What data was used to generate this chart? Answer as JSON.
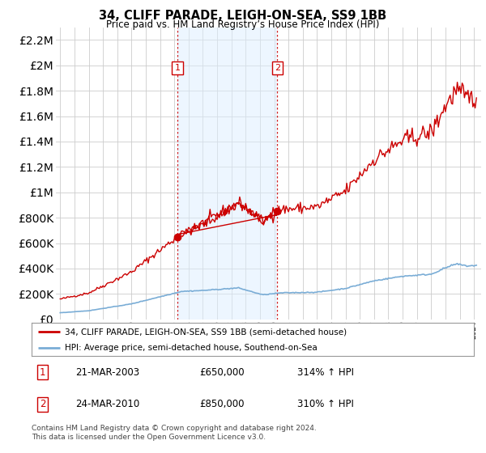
{
  "title": "34, CLIFF PARADE, LEIGH-ON-SEA, SS9 1BB",
  "subtitle": "Price paid vs. HM Land Registry’s House Price Index (HPI)",
  "legend_label1": "34, CLIFF PARADE, LEIGH-ON-SEA, SS9 1BB (semi-detached house)",
  "legend_label2": "HPI: Average price, semi-detached house, Southend-on-Sea",
  "transaction1_date": "21-MAR-2003",
  "transaction1_price": "£650,000",
  "transaction1_hpi": "314% ↑ HPI",
  "transaction2_date": "24-MAR-2010",
  "transaction2_price": "£850,000",
  "transaction2_hpi": "310% ↑ HPI",
  "footer": "Contains HM Land Registry data © Crown copyright and database right 2024.\nThis data is licensed under the Open Government Licence v3.0.",
  "ylim": [
    0,
    2300000
  ],
  "xlim_left": 1994.7,
  "xlim_right": 2024.5,
  "hpi_color": "#7aadd6",
  "price_color": "#cc0000",
  "marker1_x": 2003.22,
  "marker1_y": 650000,
  "marker2_x": 2010.22,
  "marker2_y": 850000,
  "vline_color": "#cc0000",
  "shade_color": "#ddeeff",
  "shade_alpha": 0.5,
  "background_color": "#ffffff",
  "grid_color": "#cccccc",
  "yticks": [
    0,
    200000,
    400000,
    600000,
    800000,
    1000000,
    1200000,
    1400000,
    1600000,
    1800000,
    2000000,
    2200000
  ]
}
